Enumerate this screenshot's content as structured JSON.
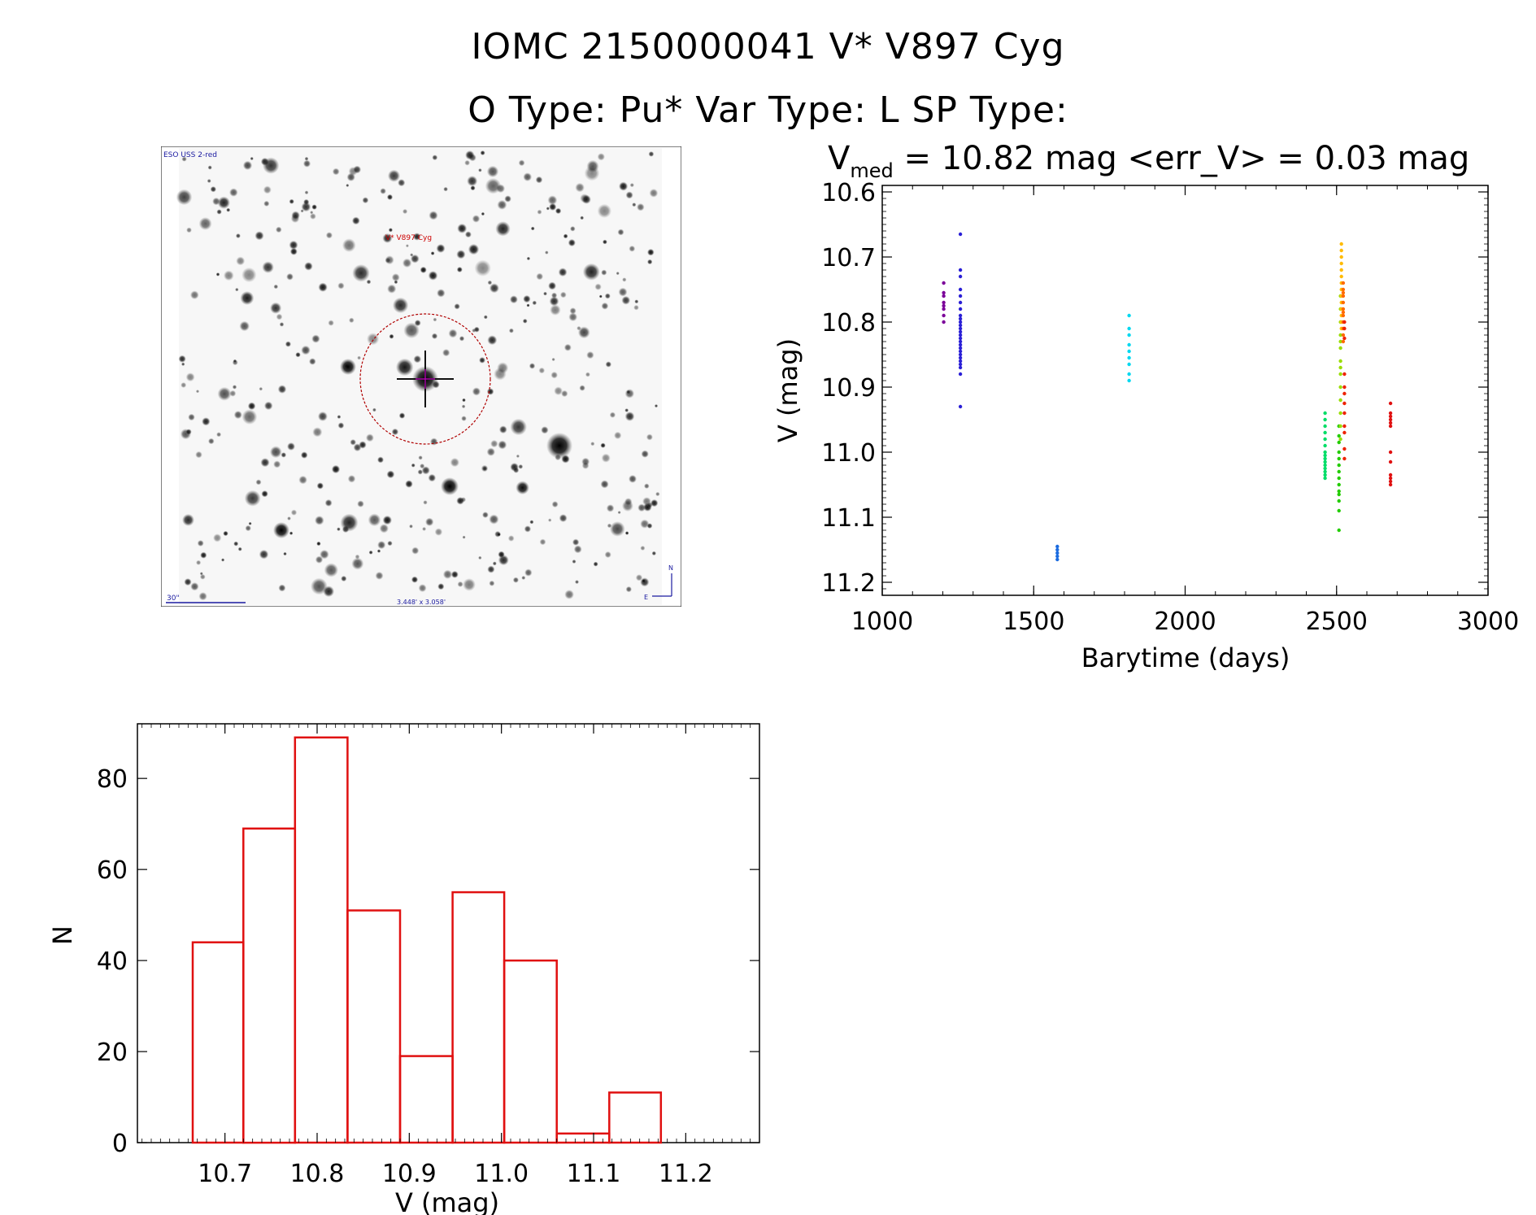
{
  "header": {
    "title_line1": "IOMC 2150000041    V* V897 Cyg",
    "title_line2": "O Type: Pu*  Var Type: L  SP Type:"
  },
  "thumbnail": {
    "survey_label": "ESO USS 2-red",
    "target_label": "V* V897 Cyg",
    "scale_label": "30\"",
    "fov_label": "3.448' x 3.058'",
    "north_label": "N",
    "east_label": "E"
  },
  "chart_data": [
    {
      "type": "scatter",
      "title_prefix": "V",
      "title_subscript": "med",
      "title_rest": " = 10.82 mag <err_V> = 0.03 mag",
      "xlabel": "Barytime (days)",
      "ylabel": "V (mag)",
      "xlim": [
        1000,
        3000
      ],
      "ylim": [
        11.22,
        10.59
      ],
      "y_inverted": true,
      "xticks": [
        1000,
        1500,
        2000,
        2500,
        3000
      ],
      "xtick_labels": [
        "1000",
        "1500",
        "2000",
        "2500",
        "3000"
      ],
      "yticks": [
        10.6,
        10.7,
        10.8,
        10.9,
        11.0,
        11.1,
        11.2
      ],
      "ytick_labels": [
        "10.6",
        "10.7",
        "10.8",
        "10.9",
        "11.0",
        "11.1",
        "11.2"
      ],
      "series": [
        {
          "name": "epoch-1",
          "color": "#7b0099",
          "x": [
            1203,
            1203,
            1203,
            1203,
            1203,
            1203,
            1203,
            1203
          ],
          "y": [
            10.74,
            10.76,
            10.77,
            10.775,
            10.78,
            10.79,
            10.8,
            10.755
          ]
        },
        {
          "name": "epoch-2",
          "color": "#2a1fd6",
          "x": [
            1258,
            1258,
            1258,
            1258,
            1258,
            1258,
            1258,
            1258,
            1258,
            1258,
            1258,
            1258,
            1258,
            1258,
            1258,
            1258,
            1258,
            1258,
            1258,
            1258,
            1258,
            1258,
            1258,
            1258,
            1258,
            1258
          ],
          "y": [
            10.665,
            10.72,
            10.73,
            10.75,
            10.76,
            10.77,
            10.78,
            10.79,
            10.8,
            10.805,
            10.81,
            10.815,
            10.82,
            10.825,
            10.83,
            10.835,
            10.84,
            10.845,
            10.85,
            10.855,
            10.86,
            10.865,
            10.87,
            10.88,
            10.93,
            10.795
          ]
        },
        {
          "name": "epoch-3",
          "color": "#1a6be0",
          "x": [
            1578,
            1578,
            1578,
            1578,
            1578
          ],
          "y": [
            11.145,
            11.15,
            11.155,
            11.16,
            11.165
          ]
        },
        {
          "name": "epoch-4",
          "color": "#00d8f0",
          "x": [
            1815,
            1815,
            1815,
            1815,
            1815,
            1815,
            1815,
            1815,
            1815
          ],
          "y": [
            10.79,
            10.81,
            10.82,
            10.835,
            10.845,
            10.855,
            10.865,
            10.88,
            10.89
          ]
        },
        {
          "name": "epoch-5",
          "color": "#00dd66",
          "x": [
            2462,
            2462,
            2462,
            2462,
            2462,
            2462,
            2462,
            2462,
            2462,
            2462,
            2462,
            2462,
            2462,
            2462,
            2462
          ],
          "y": [
            10.94,
            10.96,
            10.97,
            10.98,
            10.99,
            11.0,
            11.005,
            11.01,
            11.015,
            11.02,
            11.03,
            11.035,
            11.04,
            10.95,
            11.025
          ]
        },
        {
          "name": "epoch-6",
          "color": "#22cc00",
          "x": [
            2508,
            2508,
            2508,
            2508,
            2508,
            2508,
            2508,
            2508,
            2508,
            2508,
            2508,
            2508,
            2508,
            2508
          ],
          "y": [
            10.975,
            10.985,
            11.0,
            11.01,
            11.02,
            11.03,
            11.04,
            11.05,
            11.06,
            11.075,
            11.09,
            11.12,
            10.96,
            11.065
          ]
        },
        {
          "name": "epoch-7",
          "color": "#99dd00",
          "x": [
            2513,
            2513,
            2513,
            2513,
            2513,
            2513,
            2513,
            2513,
            2513,
            2513,
            2513,
            2513,
            2513,
            2513
          ],
          "y": [
            10.76,
            10.78,
            10.8,
            10.82,
            10.84,
            10.86,
            10.88,
            10.9,
            10.92,
            10.94,
            10.96,
            10.98,
            10.83,
            10.87
          ]
        },
        {
          "name": "epoch-8",
          "color": "#ffbb00",
          "x": [
            2516,
            2516,
            2516,
            2516,
            2516,
            2516,
            2516,
            2516,
            2516,
            2516,
            2516,
            2516,
            2516,
            2516
          ],
          "y": [
            10.68,
            10.69,
            10.7,
            10.71,
            10.72,
            10.73,
            10.74,
            10.75,
            10.76,
            10.77,
            10.78,
            10.79,
            10.8,
            10.81
          ]
        },
        {
          "name": "epoch-9",
          "color": "#ff6a00",
          "x": [
            2522,
            2522,
            2522,
            2522,
            2522,
            2522,
            2522,
            2522,
            2522,
            2522,
            2522,
            2522
          ],
          "y": [
            10.74,
            10.75,
            10.76,
            10.77,
            10.78,
            10.79,
            10.8,
            10.81,
            10.82,
            10.83,
            10.755,
            10.785
          ]
        },
        {
          "name": "epoch-10",
          "color": "#ee2200",
          "x": [
            2526,
            2526,
            2526,
            2526,
            2526,
            2526,
            2526,
            2526,
            2526,
            2526,
            2526,
            2526
          ],
          "y": [
            10.88,
            10.9,
            10.91,
            10.925,
            10.94,
            10.96,
            10.97,
            10.995,
            11.01,
            10.8,
            10.81,
            10.825
          ]
        },
        {
          "name": "epoch-11",
          "color": "#e01010",
          "x": [
            2678,
            2678,
            2678,
            2678,
            2678,
            2678,
            2678,
            2678,
            2678,
            2678,
            2678,
            2678
          ],
          "y": [
            10.925,
            10.94,
            10.945,
            10.95,
            10.955,
            10.96,
            11.0,
            11.015,
            11.035,
            11.04,
            11.045,
            11.05
          ]
        }
      ]
    },
    {
      "type": "bar",
      "subtype": "histogram",
      "xlabel": "V (mag)",
      "ylabel": "N",
      "xlim": [
        10.605,
        11.28
      ],
      "ylim": [
        0,
        92
      ],
      "bin_edges": [
        10.665,
        10.72,
        10.776,
        10.833,
        10.89,
        10.947,
        11.003,
        11.06,
        11.117,
        11.173
      ],
      "values": [
        44,
        69,
        89,
        51,
        19,
        55,
        40,
        2,
        11
      ],
      "color": "#e01010",
      "xticks": [
        10.7,
        10.8,
        10.9,
        11.0,
        11.1,
        11.2
      ],
      "xtick_labels": [
        "10.7",
        "10.8",
        "10.9",
        "11.0",
        "11.1",
        "11.2"
      ],
      "yticks": [
        0,
        20,
        40,
        60,
        80
      ],
      "ytick_labels": [
        "0",
        "20",
        "40",
        "60",
        "80"
      ]
    }
  ]
}
